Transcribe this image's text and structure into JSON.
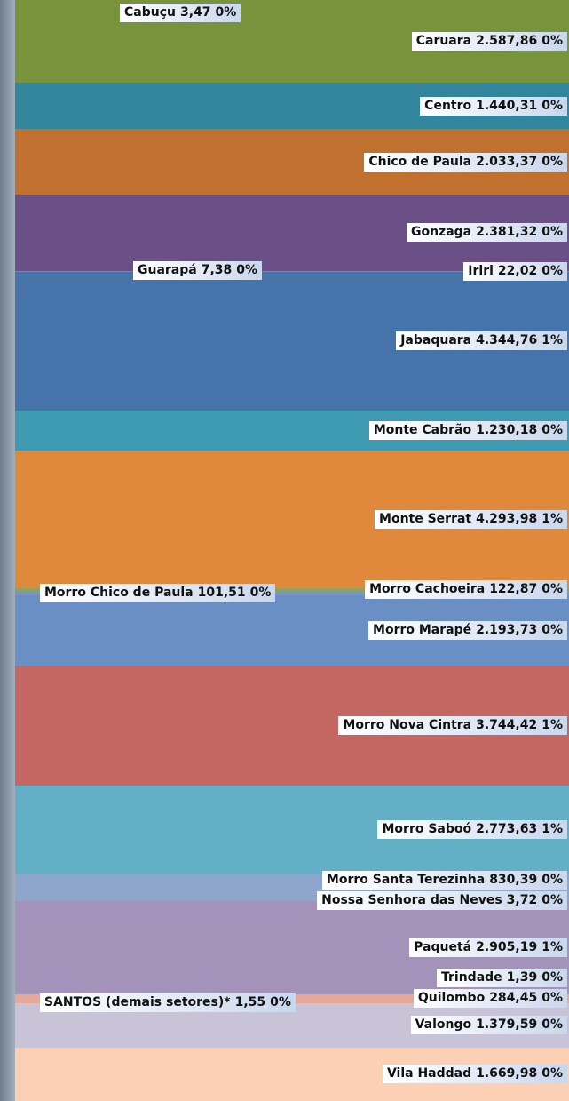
{
  "chart_data": {
    "type": "stacked-column",
    "categories": [
      "Cabuçu",
      "Caruara",
      "Centro",
      "Chico de Paula",
      "Gonzaga",
      "Guarapá",
      "Iriri",
      "Jabaquara",
      "Monte Cabrão",
      "Monte Serrat",
      "Morro Cachoeira",
      "Morro Chico de Paula",
      "Morro Marapé",
      "Morro Nova Cintra",
      "Morro Saboó",
      "Morro Santa Terezinha",
      "Nossa Senhora das Neves",
      "Paquetá",
      "Trindade",
      "Quilombo",
      "SANTOS (demais setores)*",
      "Valongo",
      "Vila Haddad"
    ],
    "values": [
      3.47,
      2587.86,
      1440.31,
      2033.37,
      2381.32,
      7.38,
      22.02,
      4344.76,
      1230.18,
      4293.98,
      122.87,
      101.51,
      2193.73,
      3744.42,
      2773.63,
      830.39,
      3.72,
      2905.19,
      1.39,
      284.45,
      1.55,
      1379.59,
      1669.98
    ],
    "value_labels": [
      "3,47",
      "2.587,86",
      "1.440,31",
      "2.033,37",
      "2.381,32",
      "7,38",
      "22,02",
      "4.344,76",
      "1.230,18",
      "4.293,98",
      "122,87",
      "101,51",
      "2.193,73",
      "3.744,42",
      "2.773,63",
      "830,39",
      "3,72",
      "2.905,19",
      "1,39",
      "284,45",
      "1,55",
      "1.379,59",
      "1.669,98"
    ],
    "shares": [
      0,
      0,
      0,
      0,
      0,
      0,
      0,
      1,
      0,
      1,
      0,
      0,
      0,
      1,
      1,
      0,
      0,
      1,
      0,
      0,
      0,
      0,
      0
    ],
    "share_labels": [
      "0%",
      "0%",
      "0%",
      "0%",
      "0%",
      "0%",
      "0%",
      "1%",
      "0%",
      "1%",
      "0%",
      "0%",
      "0%",
      "1%",
      "1%",
      "0%",
      "0%",
      "1%",
      "0%",
      "0%",
      "0%",
      "0%",
      "0%"
    ],
    "colors": [
      "#9bbb59",
      "#77933c",
      "#31859c",
      "#c0712f",
      "#6b5088",
      "#8cb65a",
      "#5b8fc8",
      "#4673aa",
      "#3d9ab0",
      "#e0883c",
      "#8aa65a",
      "#7f95b5",
      "#6a8fc5",
      "#c46662",
      "#63b0c6",
      "#8ea5cc",
      "#b0a8c8",
      "#a393bb",
      "#e8b0a0",
      "#e8a898",
      "#d0cade",
      "#c8c3d6",
      "#fcd0b4"
    ]
  }
}
